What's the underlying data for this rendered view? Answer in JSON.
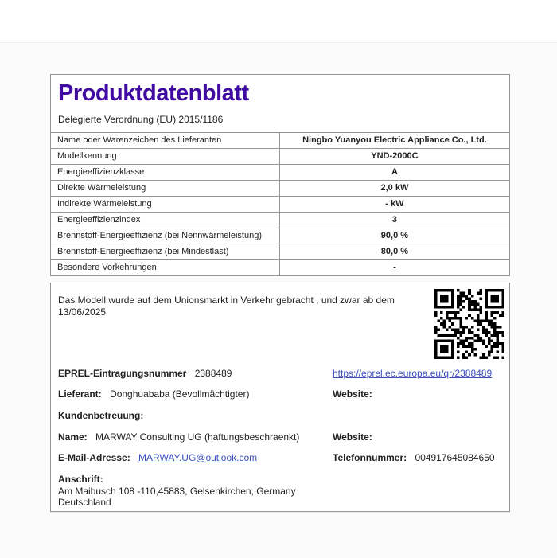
{
  "header": {
    "title": "Produktdatenblatt",
    "subtitle": "Delegierte Verordnung (EU) 2015/1186"
  },
  "colors": {
    "title_purple": "#3e0aa0",
    "link_blue": "#3a51bb",
    "border_gray": "#969696"
  },
  "table": {
    "rows": [
      {
        "label": "Name oder Warenzeichen des Lieferanten",
        "value": "Ningbo Yuanyou Electric Appliance Co., Ltd."
      },
      {
        "label": "Modellkennung",
        "value": "YND-2000C"
      },
      {
        "label": "Energieeffizienzklasse",
        "value": "A"
      },
      {
        "label": "Direkte Wärmeleistung",
        "value": "2,0 kW"
      },
      {
        "label": "Indirekte Wärmeleistung",
        "value": "- kW"
      },
      {
        "label": "Energieeffizienzindex",
        "value": "3"
      },
      {
        "label": "Brennstoff-Energieeffizienz (bei Nennwärmeleistung)",
        "value": "90,0 %"
      },
      {
        "label": "Brennstoff-Energieeffizienz (bei Mindestlast)",
        "value": "80,0 %"
      },
      {
        "label": "Besondere Vorkehrungen",
        "value": "-"
      }
    ]
  },
  "market": {
    "statement": "Das Modell wurde auf dem Unionsmarkt in Verkehr gebracht , und zwar ab dem 13/06/2025",
    "qr_icon": "qr-code"
  },
  "contact": {
    "eprel_label": "EPREL-Eintragungsnummer",
    "eprel_number": "2388489",
    "eprel_link": "https://eprel.ec.europa.eu/qr/2388489",
    "lieferant_label": "Lieferant:",
    "lieferant_value": "Donghuababa (Bevollmächtigter)",
    "website_label_1": "Website:",
    "kundenbetreuung_label": "Kundenbetreuung:",
    "name_label": "Name:",
    "name_value": "MARWAY Consulting UG (haftungsbeschraenkt)",
    "website_label_2": "Website:",
    "email_label": "E-Mail-Adresse:",
    "email_link": "MARWAY.UG@outlook.com",
    "telefon_label": "Telefonnummer:",
    "telefon_value": "004917645084650",
    "anschrift_label": "Anschrift:",
    "address_line1": "Am Maibusch 108 -110,45883, Gelsenkirchen, Germany",
    "address_line2": "Deutschland"
  }
}
